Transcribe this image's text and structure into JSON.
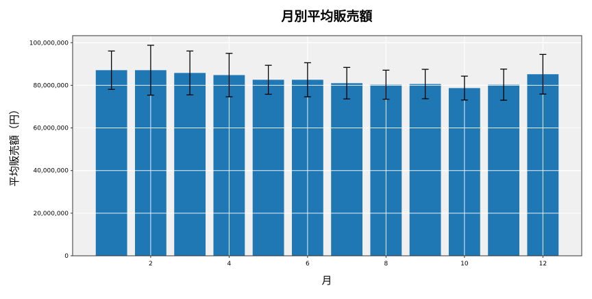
{
  "chart_data": {
    "type": "bar",
    "title": "月別平均販売額",
    "xlabel": "月",
    "ylabel": "平均販売額（円）",
    "x": [
      1,
      2,
      3,
      4,
      5,
      6,
      7,
      8,
      9,
      10,
      11,
      12
    ],
    "values": [
      87100000,
      87100000,
      85800000,
      84800000,
      82600000,
      82600000,
      81000000,
      80300000,
      80600000,
      78700000,
      80300000,
      85200000
    ],
    "error": [
      9000000,
      11700000,
      10300000,
      10200000,
      6800000,
      8000000,
      7400000,
      6800000,
      6900000,
      5600000,
      7300000,
      9300000
    ],
    "xlim": [
      0.01,
      12.99
    ],
    "ylim": [
      0,
      103300000
    ],
    "xticks": [
      2,
      4,
      6,
      8,
      10,
      12
    ],
    "xtick_labels": [
      "2",
      "4",
      "6",
      "8",
      "10",
      "12"
    ],
    "yticks": [
      0,
      20000000,
      40000000,
      60000000,
      80000000,
      100000000
    ],
    "ytick_labels": [
      "0",
      "20,000,000",
      "40,000,000",
      "60,000,000",
      "80,000,000",
      "100,000,000"
    ],
    "grid": true,
    "colors": {
      "bar": "#1f77b4",
      "background": "#f0f0f0",
      "grid": "#ffffff",
      "error": "#000000"
    }
  }
}
